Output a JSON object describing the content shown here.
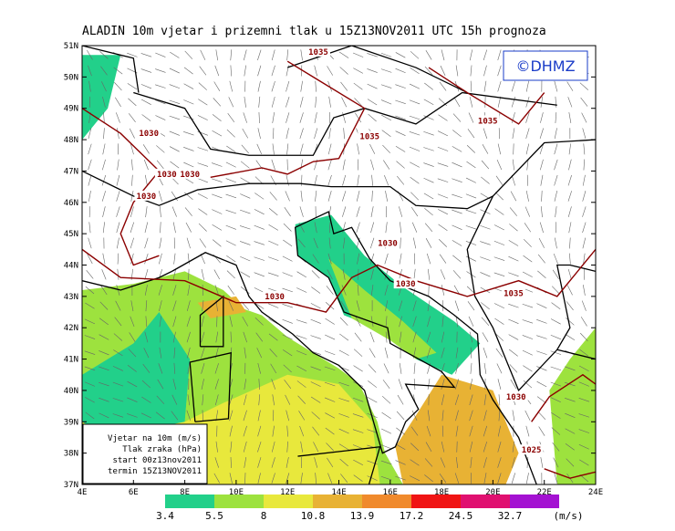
{
  "title": "ALADIN 10m vjetar i prizemni tlak u 15Z13NOV2011 UTC 15h prognoza",
  "logo": "©DHMZ",
  "lat_labels": [
    "37N",
    "38N",
    "39N",
    "40N",
    "41N",
    "42N",
    "43N",
    "44N",
    "45N",
    "46N",
    "47N",
    "48N",
    "49N",
    "50N",
    "51N"
  ],
  "lon_labels": [
    "4E",
    "6E",
    "8E",
    "10E",
    "12E",
    "14E",
    "16E",
    "18E",
    "20E",
    "22E",
    "24E"
  ],
  "isobar_labels": [
    "1030",
    "1030",
    "1030",
    "1030",
    "1030",
    "1035",
    "1035",
    "1035",
    "1030",
    "1030",
    "1035",
    "1030",
    "1025"
  ],
  "info": [
    "Vjetar na 10m (m/s)",
    "Tlak zraka (hPa)",
    "start 00z13nov2011",
    "termin 15Z13NOV2011"
  ],
  "legend": {
    "bounds": [
      3.4,
      5.5,
      8,
      10.8,
      13.9,
      17.2,
      24.5,
      32.7
    ],
    "colors": [
      "#22d08a",
      "#9de23e",
      "#e8e83c",
      "#e8b234",
      "#f08a2c",
      "#f01414",
      "#e01070",
      "#a412d2"
    ],
    "unit": "(m/s)"
  }
}
